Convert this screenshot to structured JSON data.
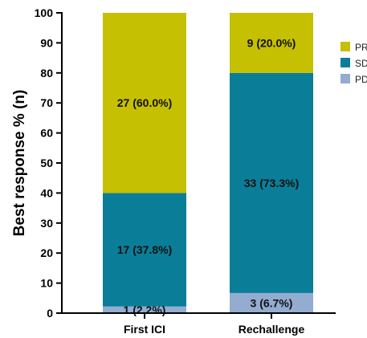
{
  "chart_data": {
    "type": "bar",
    "stacked": true,
    "categories": [
      "First ICI",
      "Rechallenge"
    ],
    "series": [
      {
        "name": "PD",
        "color": "#93acd0",
        "values": [
          2.2,
          6.7
        ],
        "labels": [
          "1 (2.2%)",
          "3 (6.7%)"
        ]
      },
      {
        "name": "SD",
        "color": "#0a7e98",
        "values": [
          37.8,
          73.3
        ],
        "labels": [
          "17 (37.8%)",
          "33 (73.3%)"
        ]
      },
      {
        "name": "PR",
        "color": "#c5c002",
        "values": [
          60.0,
          20.0
        ],
        "labels": [
          "27 (60.0%)",
          "9 (20.0%)"
        ]
      }
    ],
    "legend_order": [
      "PR",
      "SD",
      "PD"
    ],
    "legend_labels": [
      "PR",
      "SD",
      "PD"
    ],
    "ylabel": "Best response % (n)",
    "ylim": [
      0,
      100
    ],
    "yticks": [
      "0",
      "10",
      "20",
      "30",
      "40",
      "50",
      "60",
      "70",
      "80",
      "90",
      "100"
    ],
    "grid": false,
    "legend_position": "right"
  }
}
